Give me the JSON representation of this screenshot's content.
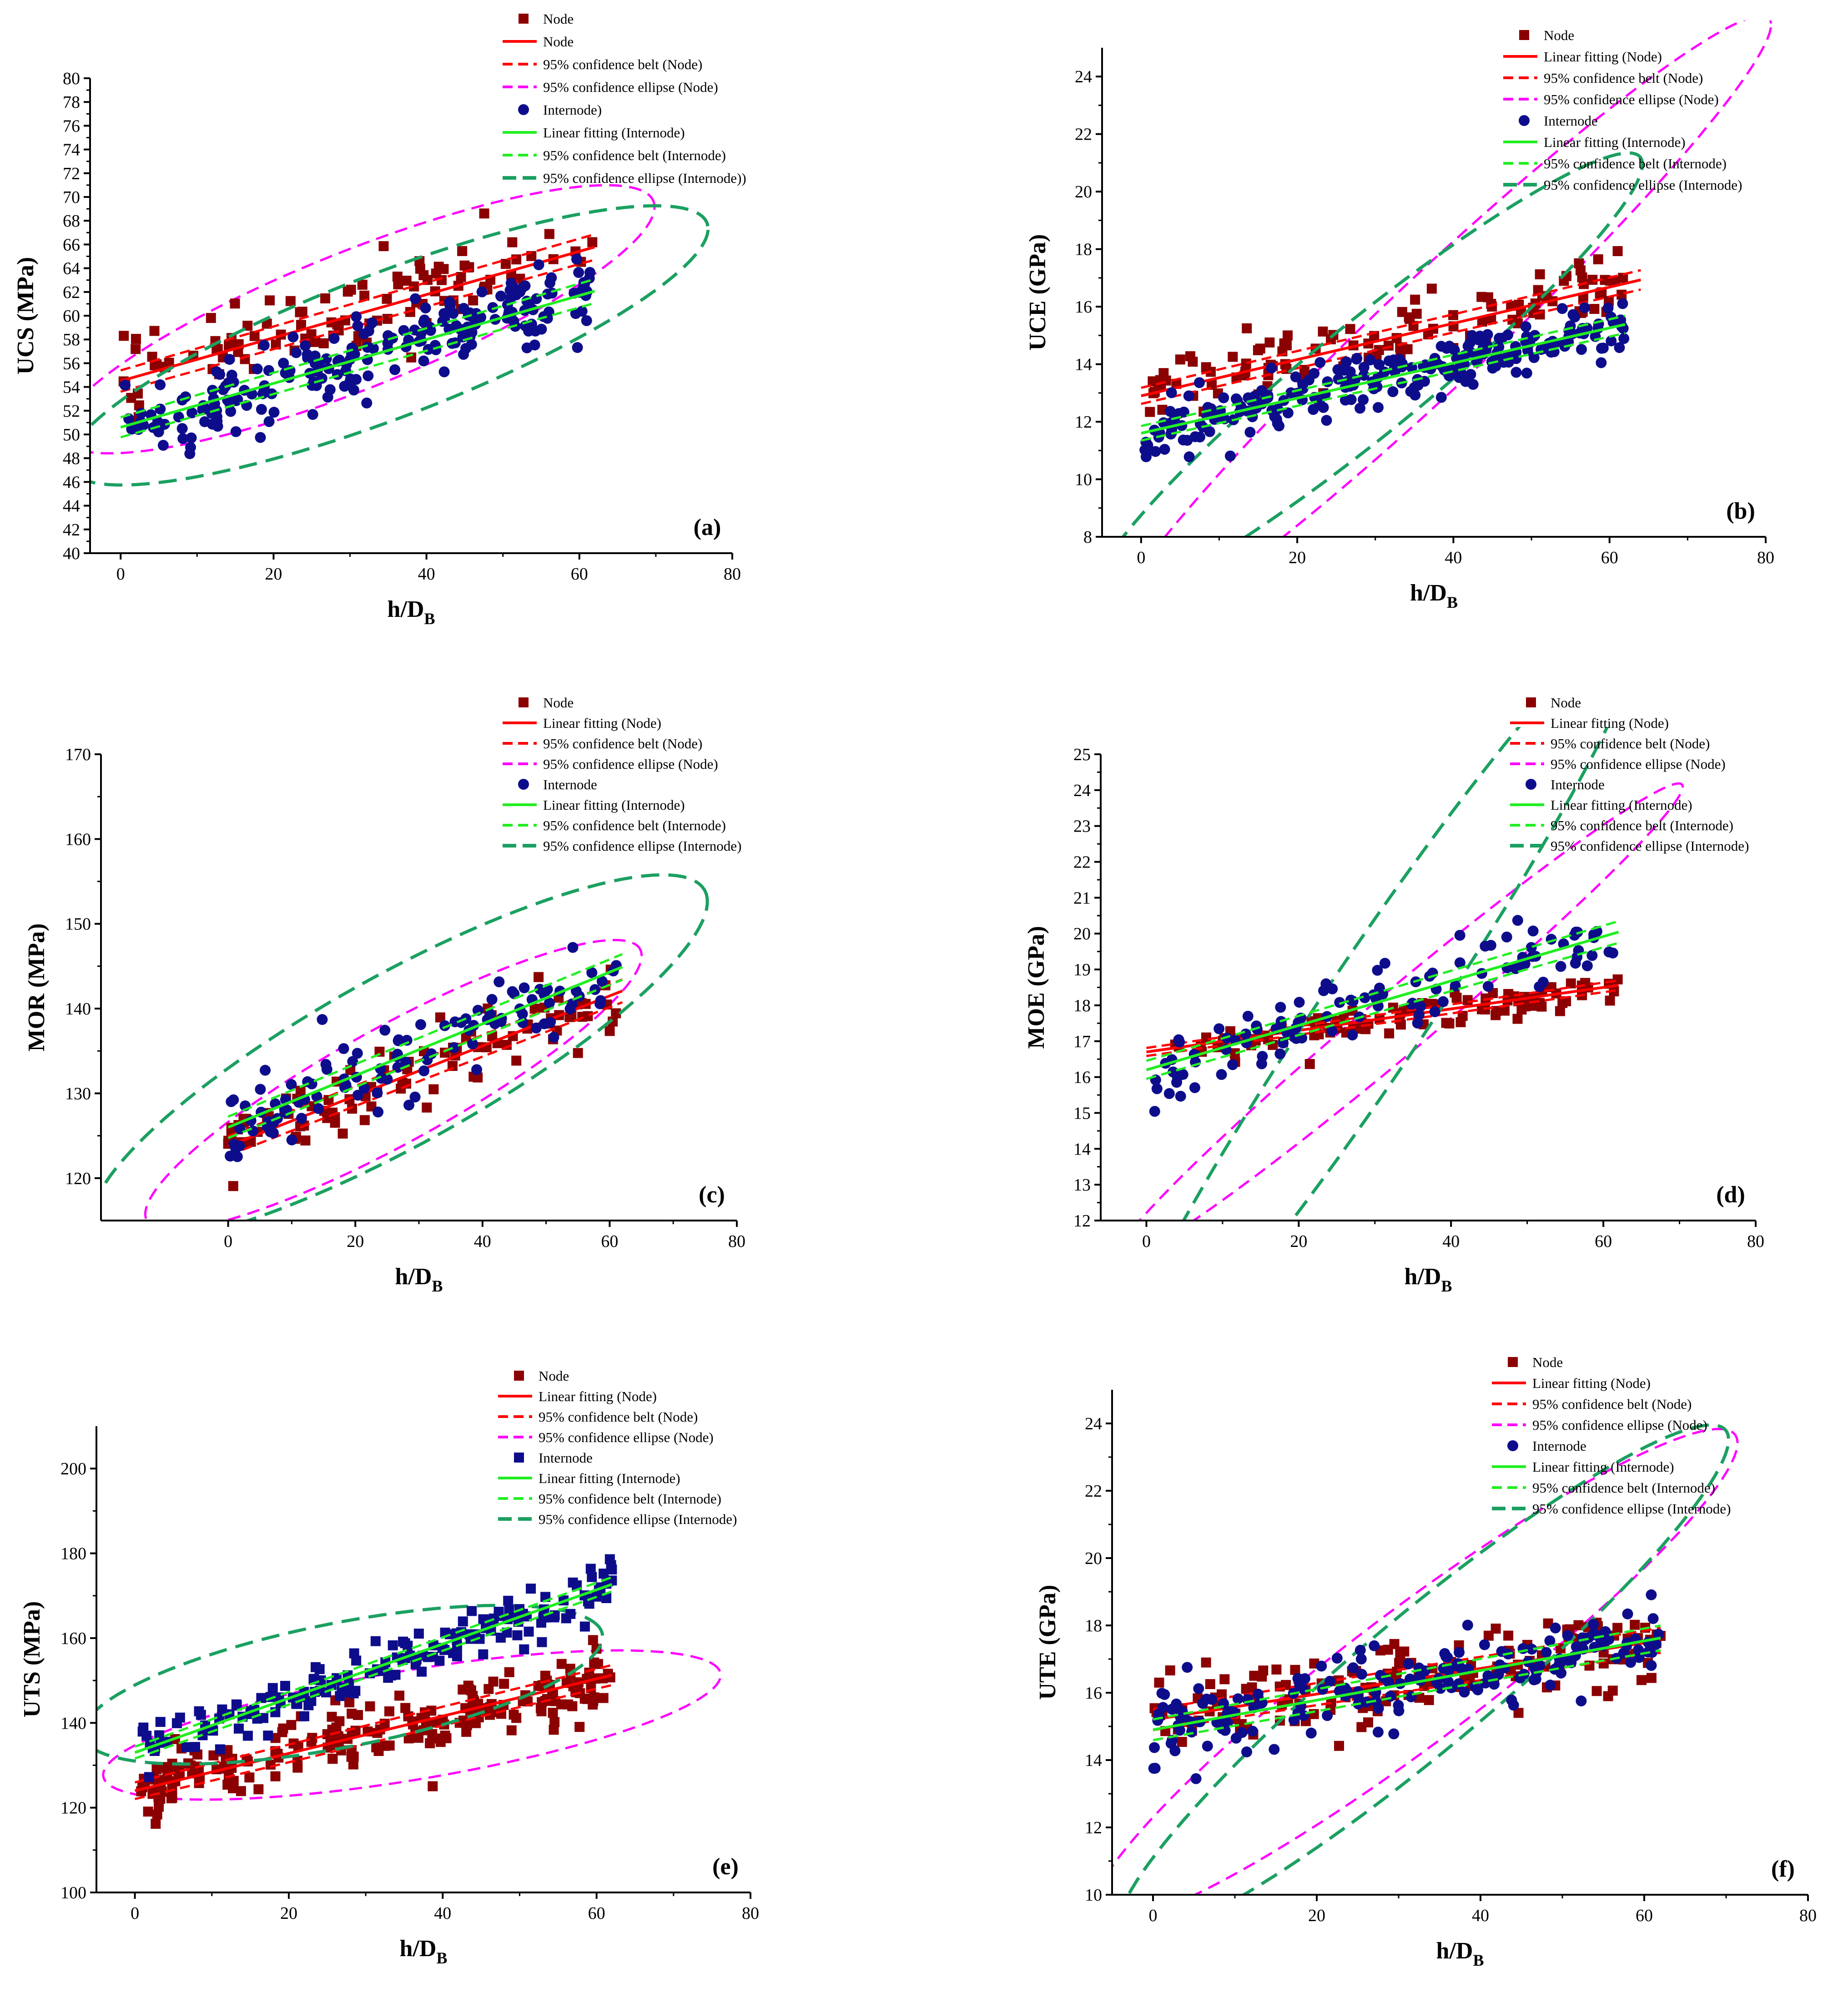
{
  "colors": {
    "node_marker": "#8B0000",
    "node_fit": "#FF0000",
    "node_ellipse": "#FF00FF",
    "internode_marker": "#0D0D8C",
    "internode_fit": "#22EE22",
    "internode_ellipse": "#1BA061"
  },
  "chart_data": [
    {
      "id": "a",
      "type": "scatter",
      "panel_label": "(a)",
      "xlabel": "h/D",
      "xlabel_sub": "B",
      "ylabel": "UCS (MPa)",
      "xlim": [
        -4,
        80
      ],
      "ylim": [
        40,
        80
      ],
      "xticks": [
        0,
        20,
        40,
        60,
        80
      ],
      "yticks": [
        40,
        42,
        44,
        46,
        48,
        50,
        52,
        54,
        56,
        58,
        60,
        62,
        64,
        66,
        68,
        70,
        72,
        74,
        76,
        78,
        80
      ],
      "node_marker": "square",
      "internode_marker": "circle",
      "legend_position": "top-right",
      "legend": [
        "Node",
        "Node",
        "95% confidence belt (Node)",
        "95% confidence ellipse (Node)",
        "Internode)",
        "Linear fitting (Internode)",
        "95% confidence belt (Internode)",
        "95% confidence ellipse (Internode))"
      ],
      "series": [
        {
          "name": "Node",
          "fit": [
            54.5,
            0.182
          ],
          "spread": 3.2,
          "xmax": 62,
          "n": 110,
          "seed": 11,
          "ellipse": {
            "cx": 31,
            "cy": 59.7,
            "a": 40,
            "b": 6.0,
            "angle": 14
          }
        },
        {
          "name": "Internode",
          "fit": [
            50.6,
            0.185
          ],
          "spread": 3.0,
          "xmax": 62,
          "n": 230,
          "seed": 12,
          "ellipse": {
            "cx": 35,
            "cy": 57.5,
            "a": 43,
            "b": 6.3,
            "angle": 13.5
          }
        }
      ]
    },
    {
      "id": "b",
      "type": "scatter",
      "panel_label": "(b)",
      "xlabel": "h/D",
      "xlabel_sub": "B",
      "ylabel": "UCE (GPa)",
      "xlim": [
        -5,
        80
      ],
      "ylim": [
        8,
        25
      ],
      "xticks": [
        0,
        20,
        40,
        60,
        80
      ],
      "yticks": [
        8,
        10,
        12,
        14,
        16,
        18,
        20,
        22,
        24
      ],
      "node_marker": "square",
      "internode_marker": "circle",
      "legend_position": "top-right",
      "legend": [
        "Node",
        "Linear fitting (Node)",
        "95% confidence belt (Node)",
        "95% confidence ellipse (Node)",
        "Internode",
        "Linear fitting (Internode)",
        "95% confidence belt (Internode)",
        "95% confidence ellipse (Internode)"
      ],
      "series": [
        {
          "name": "Node",
          "fit": [
            12.9,
            0.063
          ],
          "spread": 1.0,
          "xmax": 64,
          "n": 120,
          "seed": 21,
          "ellipse": {
            "cx": 38,
            "cy": 15.2,
            "a": 44,
            "b": 2.5,
            "angle": 14
          }
        },
        {
          "name": "Internode",
          "fit": [
            11.6,
            0.061
          ],
          "spread": 0.9,
          "xmax": 62,
          "n": 250,
          "seed": 22,
          "ellipse": {
            "cx": 29,
            "cy": 13.5,
            "a": 36,
            "b": 2.4,
            "angle": 12
          }
        }
      ]
    },
    {
      "id": "c",
      "type": "scatter",
      "panel_label": "(c)",
      "xlabel": "h/D",
      "xlabel_sub": "B",
      "ylabel": "MOR (MPa)",
      "xlim": [
        -20,
        80
      ],
      "ylim": [
        115,
        170
      ],
      "xticks": [
        0,
        20,
        40,
        60,
        80
      ],
      "yticks": [
        120,
        130,
        140,
        150,
        160,
        170
      ],
      "node_marker": "square",
      "internode_marker": "circle",
      "legend_position": "top-right",
      "legend": [
        "Node",
        "Linear fitting (Node)",
        "95% confidence belt (Node)",
        "95% confidence ellipse (Node)",
        "Internode",
        "Linear fitting (Internode)",
        "95% confidence belt (Internode)",
        "95% confidence ellipse (Internode)"
      ],
      "series": [
        {
          "name": "Node",
          "fit": [
            123.8,
            0.295
          ],
          "spread": 4.0,
          "xmax": 62,
          "n": 100,
          "seed": 31,
          "ellipse": {
            "cx": 26,
            "cy": 131,
            "a": 42,
            "b": 7.2,
            "angle": 22
          }
        },
        {
          "name": "Internode",
          "fit": [
            126.0,
            0.305
          ],
          "spread": 4.5,
          "xmax": 62,
          "n": 110,
          "seed": 32,
          "ellipse": {
            "cx": 27,
            "cy": 134,
            "a": 52,
            "b": 10.5,
            "angle": 22
          }
        }
      ]
    },
    {
      "id": "d",
      "type": "scatter",
      "panel_label": "(d)",
      "xlabel": "h/D",
      "xlabel_sub": "B",
      "ylabel": "MOE (GPa)",
      "xlim": [
        -6,
        80
      ],
      "ylim": [
        12,
        25
      ],
      "xticks": [
        0,
        20,
        40,
        60,
        80
      ],
      "yticks": [
        12,
        13,
        14,
        15,
        16,
        17,
        18,
        19,
        20,
        21,
        22,
        23,
        24,
        25
      ],
      "node_marker": "square",
      "internode_marker": "circle",
      "legend_position": "top-right",
      "legend": [
        "Node",
        "Linear fitting (Node)",
        "95% confidence belt (Node)",
        "95% confidence ellipse (Node)",
        "Internode",
        "Linear fitting (Internode)",
        "95% confidence belt (Internode)",
        "95% confidence ellipse (Internode)"
      ],
      "series": [
        {
          "name": "Node",
          "fit": [
            16.7,
            0.03
          ],
          "spread": 0.4,
          "xmax": 62,
          "n": 100,
          "seed": 41,
          "ellipse": {
            "cx": 33,
            "cy": 17.5,
            "a": 38,
            "b": 1.1,
            "angle": 10
          }
        },
        {
          "name": "Internode",
          "fit": [
            16.2,
            0.062
          ],
          "spread": 0.9,
          "xmax": 62,
          "n": 110,
          "seed": 42,
          "ellipse": {
            "cx": 30,
            "cy": 17.8,
            "a": 37,
            "b": 2.5,
            "angle": 17
          }
        }
      ]
    },
    {
      "id": "e",
      "type": "scatter",
      "panel_label": "(e)",
      "xlabel": "h/D",
      "xlabel_sub": "B",
      "ylabel": "UTS (MPa)",
      "xlim": [
        -5,
        80
      ],
      "ylim": [
        100,
        210
      ],
      "xticks": [
        0,
        20,
        40,
        60,
        80
      ],
      "yticks": [
        100,
        120,
        140,
        160,
        180,
        200
      ],
      "node_marker": "square",
      "internode_marker": "square",
      "legend_position": "top-right",
      "legend": [
        "Node",
        "Linear fitting (Node)",
        "95% confidence belt (Node)",
        "95% confidence ellipse (Node)",
        "Internode",
        "Linear fitting (Internode)",
        "95% confidence belt (Internode)",
        "95% confidence ellipse (Internode)"
      ],
      "series": [
        {
          "name": "Node",
          "fit": [
            124.0,
            0.44
          ],
          "spread": 7.0,
          "xmax": 62,
          "n": 230,
          "seed": 51,
          "ellipse": {
            "cx": 36,
            "cy": 139.5,
            "a": 42,
            "b": 12.5,
            "angle": 18
          }
        },
        {
          "name": "Internode",
          "fit": [
            133.0,
            0.64
          ],
          "spread": 5.0,
          "xmax": 62,
          "n": 170,
          "seed": 52,
          "ellipse": {
            "cx": 27,
            "cy": 149,
            "a": 36,
            "b": 14.0,
            "angle": 22
          }
        }
      ]
    },
    {
      "id": "f",
      "type": "scatter",
      "panel_label": "(f)",
      "xlabel": "h/D",
      "xlabel_sub": "B",
      "ylabel": "UTE (GPa)",
      "xlim": [
        -5,
        80
      ],
      "ylim": [
        10,
        25
      ],
      "xticks": [
        0,
        20,
        40,
        60,
        80
      ],
      "yticks": [
        10,
        12,
        14,
        16,
        18,
        20,
        22,
        24
      ],
      "node_marker": "square",
      "internode_marker": "circle",
      "legend_position": "top-right",
      "legend": [
        "Node",
        "Linear fitting (Node)",
        "95% confidence belt (Node)",
        "95% confidence ellipse (Node)",
        "Internode",
        "Linear fitting (Internode)",
        "95% confidence belt (Internode)",
        "95% confidence ellipse (Internode)"
      ],
      "series": [
        {
          "name": "Node",
          "fit": [
            15.2,
            0.038
          ],
          "spread": 1.1,
          "xmax": 62,
          "n": 170,
          "seed": 61,
          "ellipse": {
            "cx": 32,
            "cy": 16.5,
            "a": 40,
            "b": 2.4,
            "angle": 10
          }
        },
        {
          "name": "Internode",
          "fit": [
            14.9,
            0.044
          ],
          "spread": 1.1,
          "xmax": 62,
          "n": 190,
          "seed": 62,
          "ellipse": {
            "cx": 33,
            "cy": 16.3,
            "a": 38,
            "b": 2.5,
            "angle": 11
          }
        }
      ]
    }
  ]
}
